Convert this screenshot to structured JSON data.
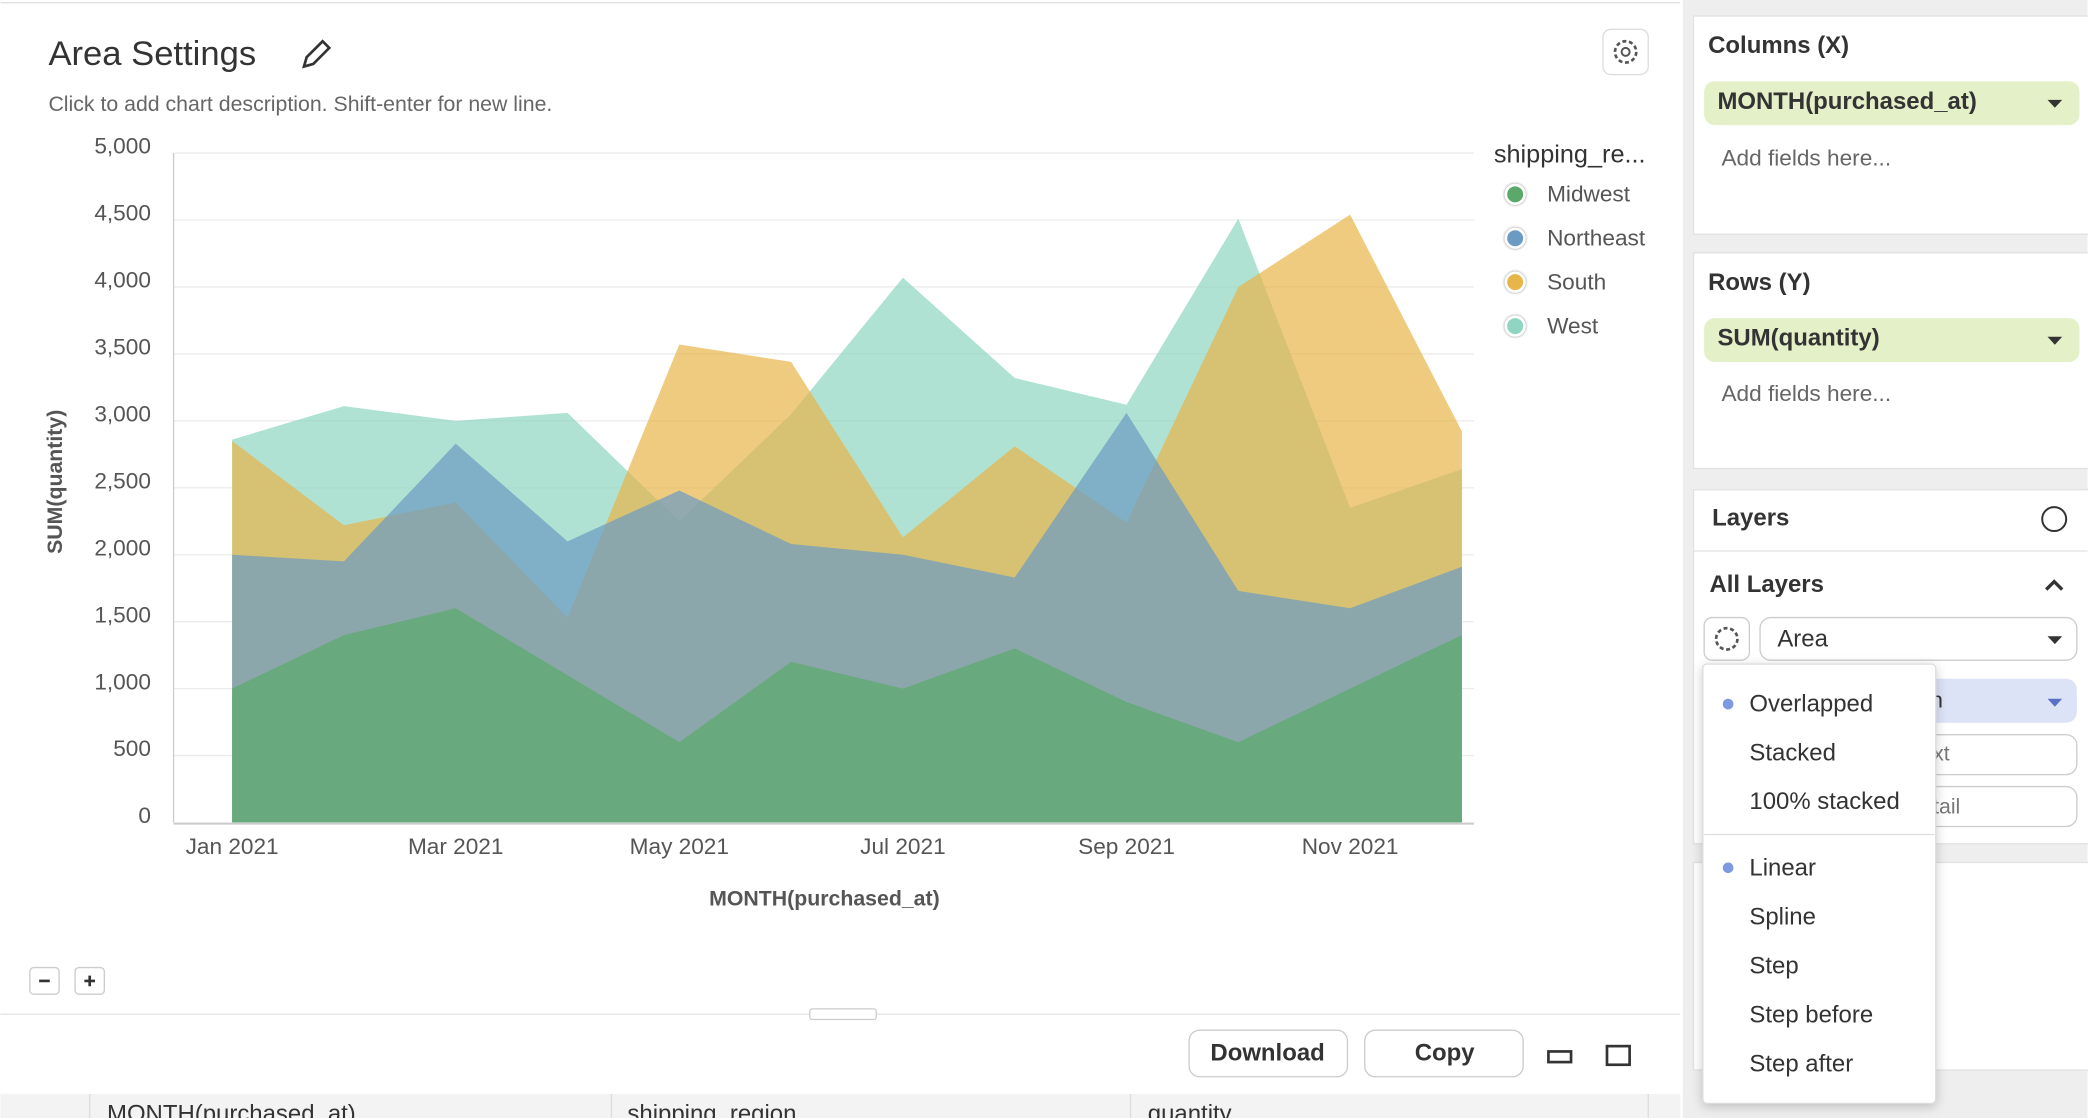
{
  "header": {
    "title": "Area Settings",
    "description": "Click to add chart description. Shift-enter for new line."
  },
  "chart_data": {
    "type": "area",
    "legend_title": "shipping_re...",
    "y_label": "SUM(quantity)",
    "x_label": "MONTH(purchased_at)",
    "categories": [
      "Jan 2021",
      null,
      "Mar 2021",
      null,
      "May 2021",
      null,
      "Jul 2021",
      null,
      "Sep 2021",
      null,
      "Nov 2021",
      null
    ],
    "series": [
      {
        "name": "Midwest",
        "color": "#5aa96a",
        "values": [
          1000,
          1400,
          1600,
          1100,
          600,
          1200,
          1000,
          1300,
          900,
          600,
          1000,
          1400
        ]
      },
      {
        "name": "Northeast",
        "color": "#6b9bc3",
        "values": [
          2000,
          1950,
          2830,
          2100,
          2480,
          2080,
          2000,
          1830,
          3060,
          1730,
          1600,
          1910
        ]
      },
      {
        "name": "South",
        "color": "#e8b54a",
        "values": [
          2850,
          2220,
          2390,
          1530,
          3570,
          3440,
          2130,
          2810,
          2240,
          4000,
          4540,
          2920
        ]
      },
      {
        "name": "West",
        "color": "#8fd5c1",
        "values": [
          2860,
          3110,
          3000,
          3060,
          2250,
          3050,
          4070,
          3320,
          3120,
          4510,
          2350,
          2640
        ]
      }
    ],
    "ylim": [
      0,
      5000
    ],
    "yticks": [
      0,
      500,
      {
        "value": 1000,
        "label": "1,000"
      },
      {
        "value": 1500,
        "label": "1,500"
      },
      {
        "value": 2000,
        "label": "2,000"
      },
      {
        "value": 2500,
        "label": "2,500"
      },
      {
        "value": 3000,
        "label": "3,000"
      },
      {
        "value": 3500,
        "label": "3,500"
      },
      {
        "value": 4000,
        "label": "4,000"
      },
      {
        "value": 4500,
        "label": "4,500"
      },
      {
        "value": 5000,
        "label": "5,000"
      }
    ],
    "grid": true,
    "legend": "right"
  },
  "sidebar": {
    "columns_label": "Columns (X)",
    "columns_field": "MONTH(purchased_at)",
    "columns_placeholder": "Add fields here...",
    "rows_label": "Rows (Y)",
    "rows_field": "SUM(quantity)",
    "rows_placeholder": "Add fields here...",
    "layers": "Layers",
    "all_layers": "All Layers",
    "mark_type": "Area",
    "fragments": [
      "n",
      "xt",
      "tail"
    ]
  },
  "dropdown": {
    "stacking": [
      "Overlapped",
      "Stacked",
      "100% stacked"
    ],
    "interpolation": [
      "Linear",
      "Spline",
      "Step",
      "Step before",
      "Step after"
    ]
  },
  "toolbar": {
    "download": "Download",
    "copy": "Copy"
  },
  "table": {
    "columns": [
      "MONTH(purchased_at)",
      "shipping_region",
      "quantity"
    ]
  }
}
